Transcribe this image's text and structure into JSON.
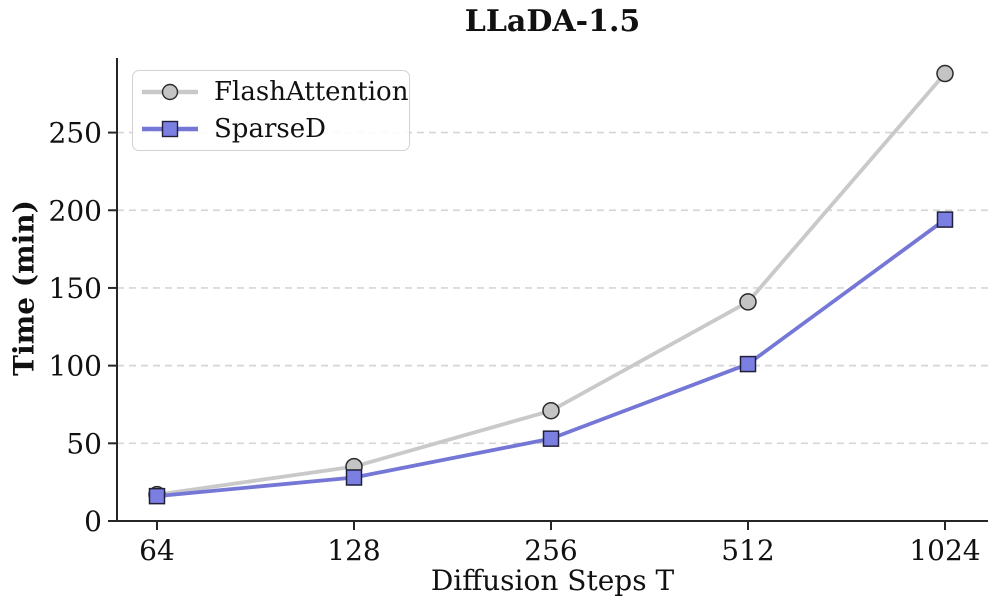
{
  "figure": {
    "background": "#ffffff",
    "text_color": "#111111"
  },
  "chart_data": {
    "type": "line",
    "title": "LLaDA-1.5",
    "xlabel": "Diffusion Steps T",
    "ylabel": "Time (min)",
    "x_scale": "log2",
    "categories": [
      64,
      128,
      256,
      512,
      1024
    ],
    "x_tick_labels": [
      "64",
      "128",
      "256",
      "512",
      "1024"
    ],
    "series": [
      {
        "name": "FlashAttention",
        "values": [
          17,
          35,
          71,
          141,
          288
        ],
        "line_color": "#c9c9c9",
        "marker": "circle",
        "marker_fill": "#c4c4c4",
        "marker_edge": "#2b2b2b"
      },
      {
        "name": "SparseD",
        "values": [
          16,
          28,
          53,
          101,
          194
        ],
        "line_color": "#7477d6",
        "marker": "square",
        "marker_fill": "#7c7fe2",
        "marker_edge": "#20203a"
      }
    ],
    "ylim": [
      0,
      298
    ],
    "yticks": [
      0,
      50,
      100,
      150,
      200,
      250
    ],
    "grid": {
      "axis": "y",
      "style": "dashed",
      "color": "#d6d6d6"
    },
    "legend": {
      "position": "upper left",
      "entries": [
        "FlashAttention",
        "SparseD"
      ]
    },
    "axis_text_color": "#111111",
    "spine_color": "#262626"
  }
}
